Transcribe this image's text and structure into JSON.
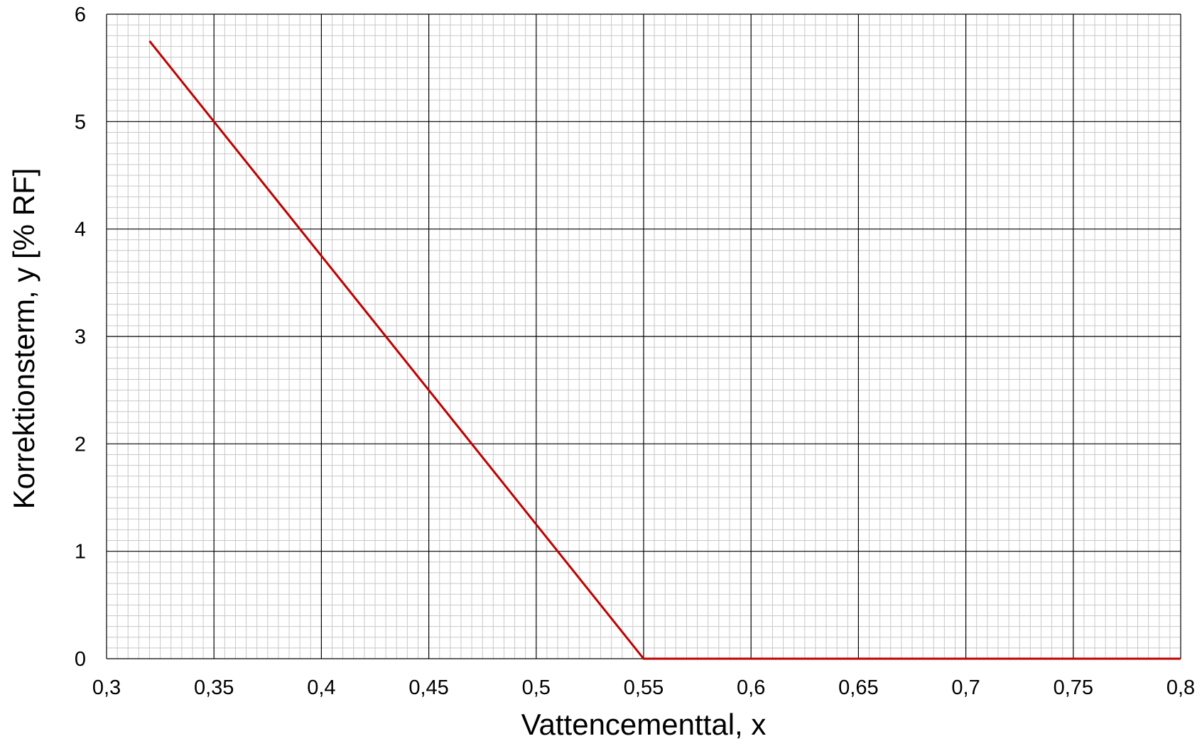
{
  "chart_data": {
    "type": "line",
    "title": "",
    "xlabel": "Vattencementtal, x",
    "ylabel": "Korrektionsterm, y [% RF]",
    "xlim": [
      0.3,
      0.8
    ],
    "ylim": [
      0,
      6
    ],
    "x_ticks": [
      0.3,
      0.35,
      0.4,
      0.45,
      0.5,
      0.55,
      0.6,
      0.65,
      0.7,
      0.75,
      0.8
    ],
    "x_tick_labels": [
      "0,3",
      "0,35",
      "0,4",
      "0,45",
      "0,5",
      "0,55",
      "0,6",
      "0,65",
      "0,7",
      "0,75",
      "0,8"
    ],
    "y_ticks": [
      0,
      1,
      2,
      3,
      4,
      5,
      6
    ],
    "y_tick_labels": [
      "0",
      "1",
      "2",
      "3",
      "4",
      "5",
      "6"
    ],
    "grid": true,
    "minor_grid": true,
    "legend": "none",
    "series": [
      {
        "color": "#c00000",
        "x": [
          0.32,
          0.55,
          0.8
        ],
        "y": [
          5.75,
          0,
          0
        ]
      }
    ]
  }
}
